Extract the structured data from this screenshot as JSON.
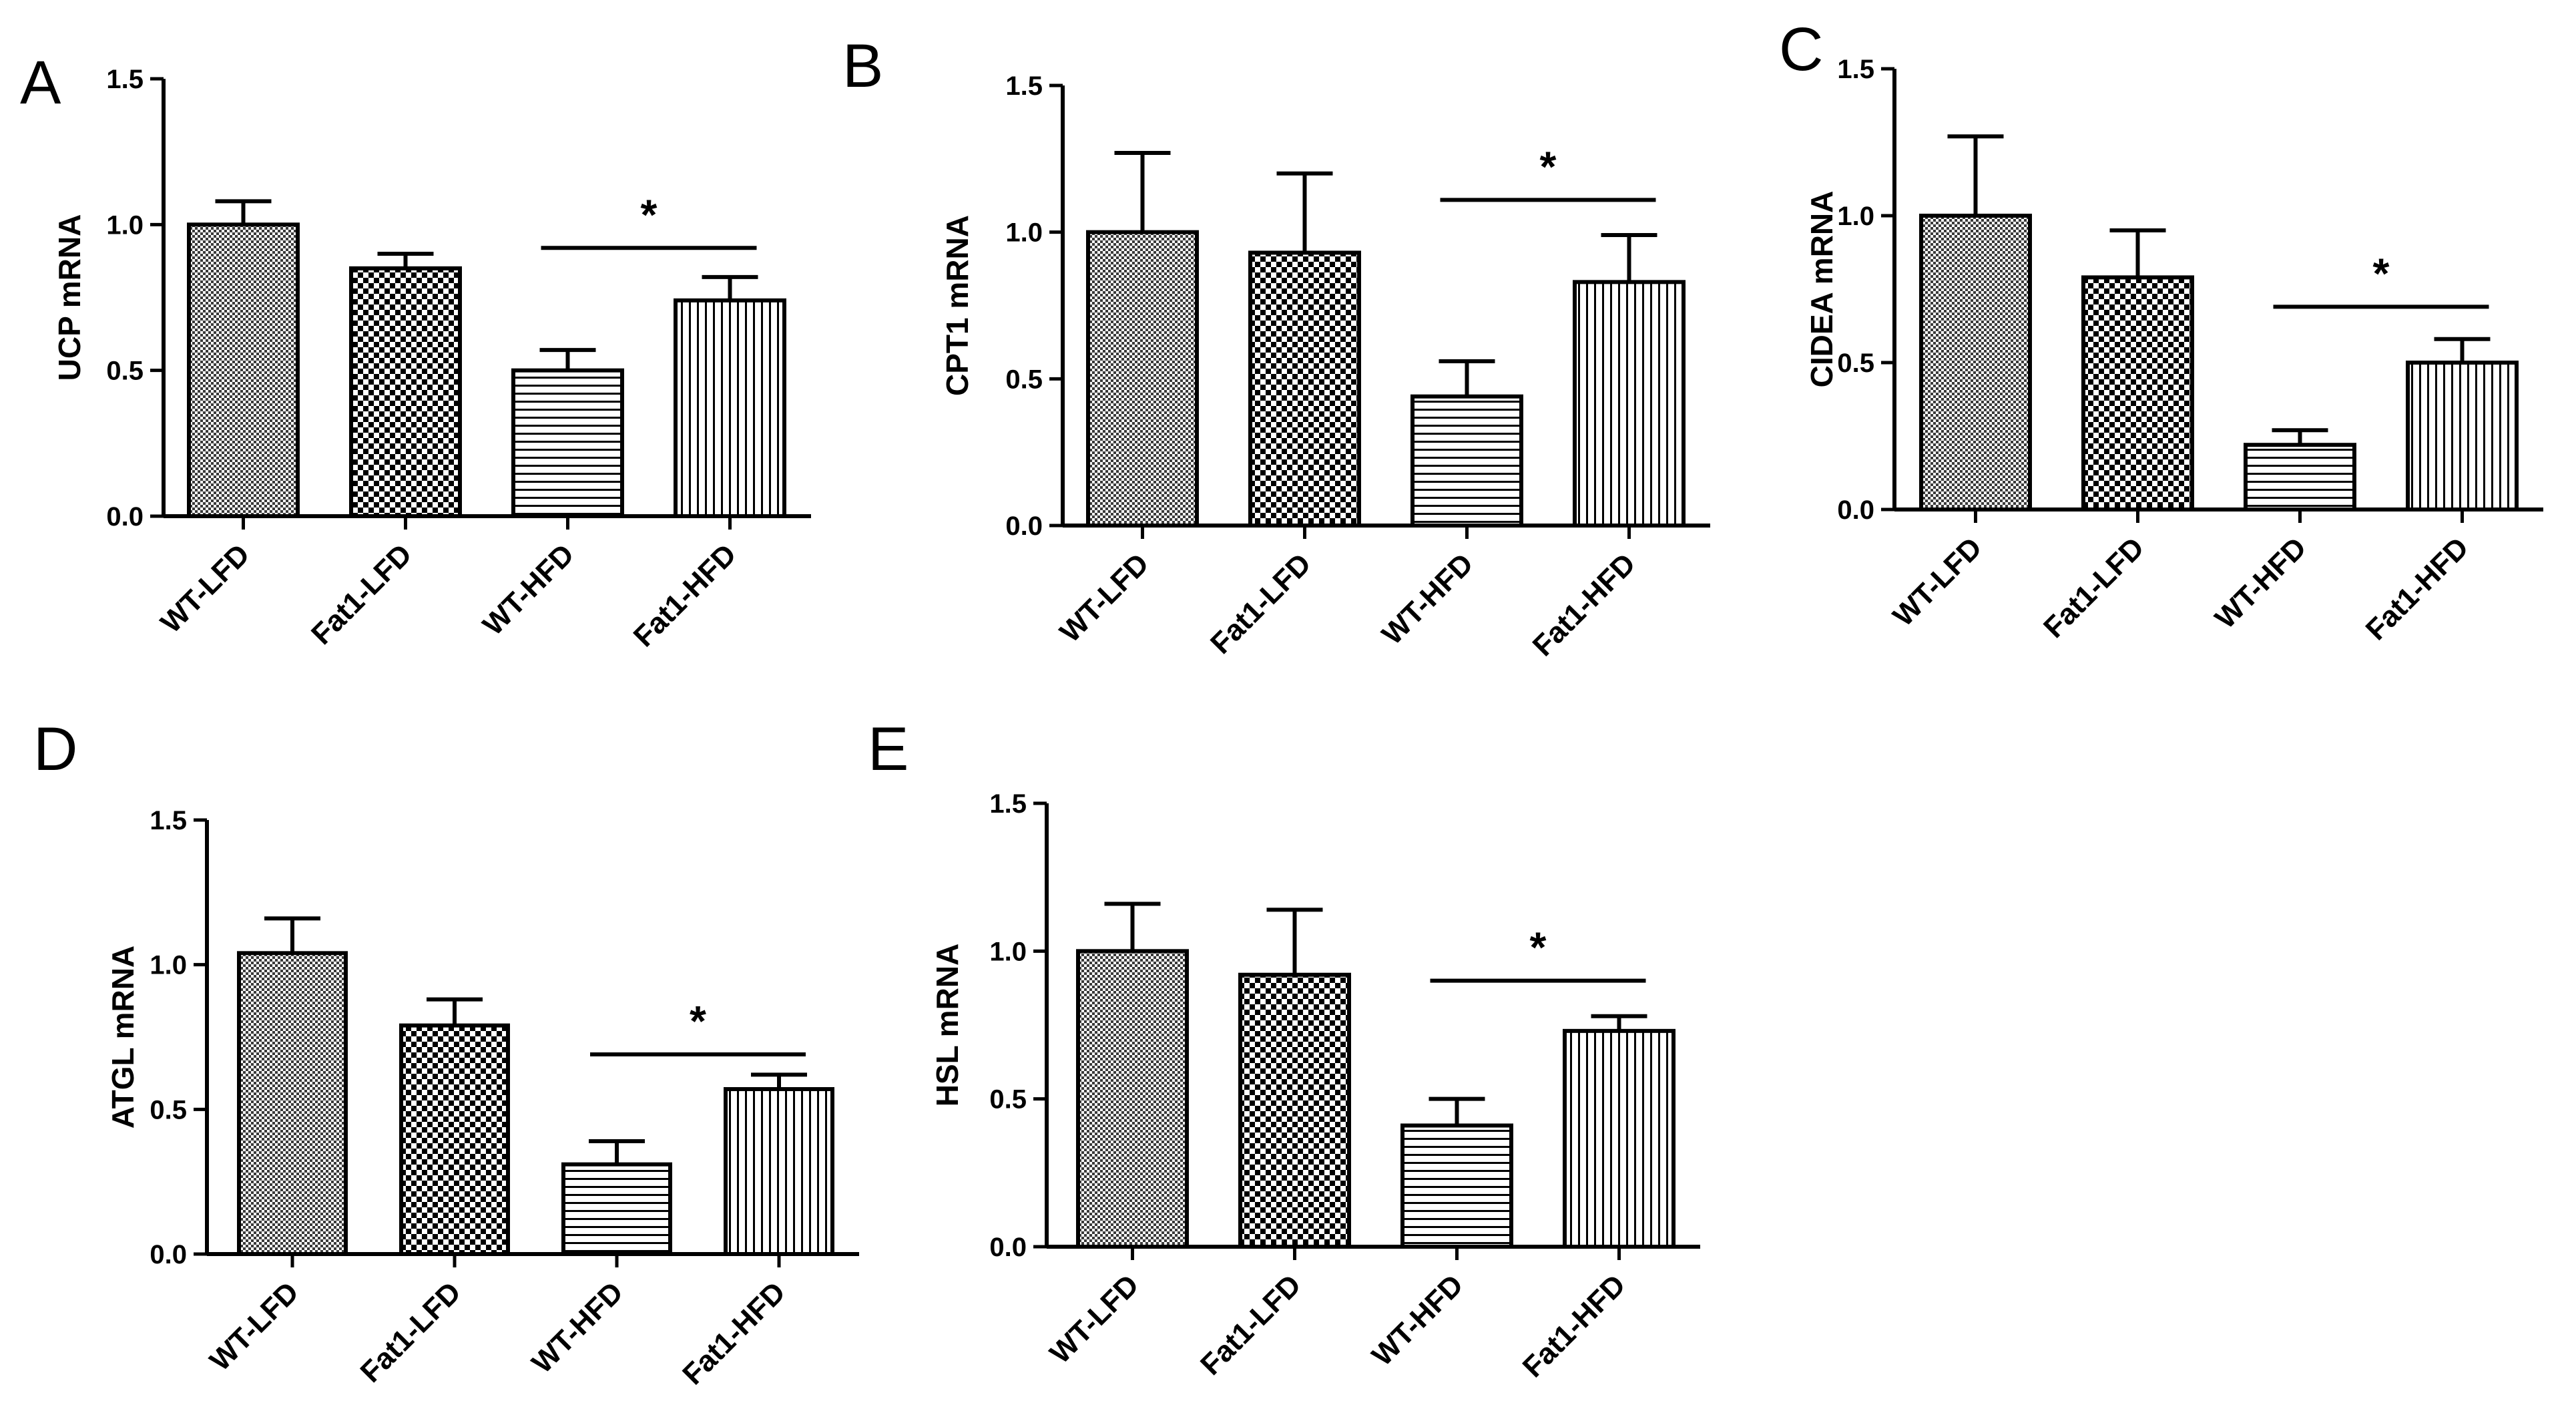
{
  "figure": {
    "panel_letters": [
      "A",
      "B",
      "C",
      "D",
      "E"
    ]
  },
  "chart_data": [
    {
      "panel": "A",
      "type": "bar",
      "ylabel": "UCP mRNA",
      "categories": [
        "WT-LFD",
        "Fat1-LFD",
        "WT-HFD",
        "Fat1-HFD"
      ],
      "values": [
        1.0,
        0.85,
        0.5,
        0.74
      ],
      "errors": [
        0.08,
        0.05,
        0.07,
        0.08
      ],
      "ylim": [
        0,
        1.5
      ],
      "yticks": [
        "0.0",
        "0.5",
        "1.0",
        "1.5"
      ],
      "significance": {
        "between": [
          "WT-HFD",
          "Fat1-HFD"
        ],
        "label": "*",
        "y": 0.92
      }
    },
    {
      "panel": "B",
      "type": "bar",
      "ylabel": "CPT1 mRNA",
      "categories": [
        "WT-LFD",
        "Fat1-LFD",
        "WT-HFD",
        "Fat1-HFD"
      ],
      "values": [
        1.0,
        0.93,
        0.44,
        0.83
      ],
      "errors": [
        0.27,
        0.27,
        0.12,
        0.16
      ],
      "ylim": [
        0,
        1.5
      ],
      "yticks": [
        "0.0",
        "0.5",
        "1.0",
        "1.5"
      ],
      "significance": {
        "between": [
          "WT-HFD",
          "Fat1-HFD"
        ],
        "label": "*",
        "y": 1.11
      }
    },
    {
      "panel": "C",
      "type": "bar",
      "ylabel": "CIDEA mRNA",
      "categories": [
        "WT-LFD",
        "Fat1-LFD",
        "WT-HFD",
        "Fat1-HFD"
      ],
      "values": [
        1.0,
        0.79,
        0.22,
        0.5
      ],
      "errors": [
        0.27,
        0.16,
        0.05,
        0.08
      ],
      "ylim": [
        0,
        1.5
      ],
      "yticks": [
        "0.0",
        "0.5",
        "1.0",
        "1.5"
      ],
      "significance": {
        "between": [
          "WT-HFD",
          "Fat1-HFD"
        ],
        "label": "*",
        "y": 0.69
      }
    },
    {
      "panel": "D",
      "type": "bar",
      "ylabel": "ATGL mRNA",
      "categories": [
        "WT-LFD",
        "Fat1-LFD",
        "WT-HFD",
        "Fat1-HFD"
      ],
      "values": [
        1.04,
        0.79,
        0.31,
        0.57
      ],
      "errors": [
        0.12,
        0.09,
        0.08,
        0.05
      ],
      "ylim": [
        0,
        1.5
      ],
      "yticks": [
        "0.0",
        "0.5",
        "1.0",
        "1.5"
      ],
      "significance": {
        "between": [
          "WT-HFD",
          "Fat1-HFD"
        ],
        "label": "*",
        "y": 0.69
      }
    },
    {
      "panel": "E",
      "type": "bar",
      "ylabel": "HSL mRNA",
      "categories": [
        "WT-LFD",
        "Fat1-LFD",
        "WT-HFD",
        "Fat1-HFD"
      ],
      "values": [
        1.0,
        0.92,
        0.41,
        0.73
      ],
      "errors": [
        0.16,
        0.22,
        0.09,
        0.05
      ],
      "ylim": [
        0,
        1.5
      ],
      "yticks": [
        "0.0",
        "0.5",
        "1.0",
        "1.5"
      ],
      "significance": {
        "between": [
          "WT-HFD",
          "Fat1-HFD"
        ],
        "label": "*",
        "y": 0.9
      }
    }
  ]
}
